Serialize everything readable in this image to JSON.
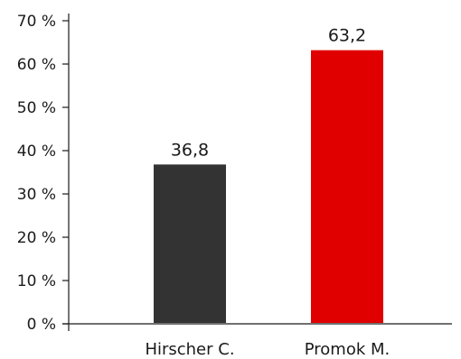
{
  "chart_data": {
    "type": "bar",
    "categories": [
      "Hirscher C.",
      "Promok M."
    ],
    "values": [
      36.8,
      63.2
    ],
    "data_labels": [
      "36,8",
      "63,2"
    ],
    "colors": [
      "#333333",
      "#e00000"
    ],
    "ylim": [
      0,
      70
    ],
    "yticks": [
      0,
      10,
      20,
      30,
      40,
      50,
      60,
      70
    ],
    "ytick_labels": [
      "0 %",
      "10 %",
      "20 %",
      "30 %",
      "40 %",
      "50 %",
      "60 %",
      "70 %"
    ],
    "grid": false,
    "title": "",
    "xlabel": "",
    "ylabel": ""
  }
}
